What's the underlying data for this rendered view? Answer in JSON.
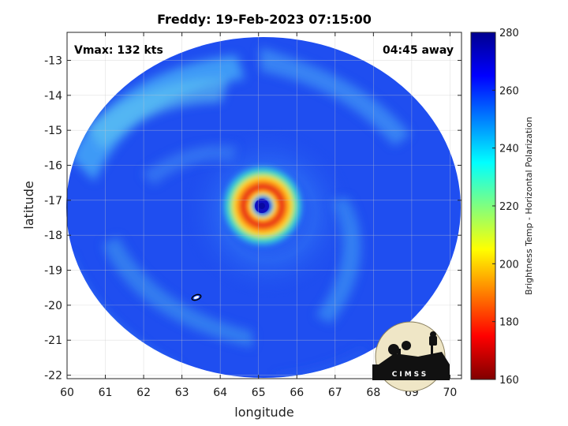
{
  "map": {
    "title": "Freddy: 19-Feb-2023 07:15:00",
    "vmax_label": "Vmax: 132 kts",
    "time_away_label": "04:45 away",
    "xlabel": "longitude",
    "ylabel": "latitude",
    "xlim": [
      60,
      70.3
    ],
    "ylim": [
      -22.1,
      -12.2
    ],
    "x_ticks": [
      60,
      61,
      62,
      63,
      64,
      65,
      66,
      67,
      68,
      69,
      70
    ],
    "y_ticks": [
      -13,
      -14,
      -15,
      -16,
      -17,
      -18,
      -19,
      -20,
      -21,
      -22
    ],
    "grid": true,
    "storm_center": {
      "lon": 65.1,
      "lat": -17.1
    },
    "colorbar": {
      "label": "Brightness Temp - Horizontal Polarization",
      "range": [
        160,
        280
      ],
      "ticks": [
        280,
        260,
        240,
        220,
        200,
        180,
        160
      ],
      "colormap": "jet"
    },
    "logo": {
      "text": "CIMSS"
    },
    "colors": {
      "background": "#ffffff",
      "ambient": "#1f4ef0",
      "eye": "#1414c8",
      "eyewall": "#d81010"
    }
  }
}
